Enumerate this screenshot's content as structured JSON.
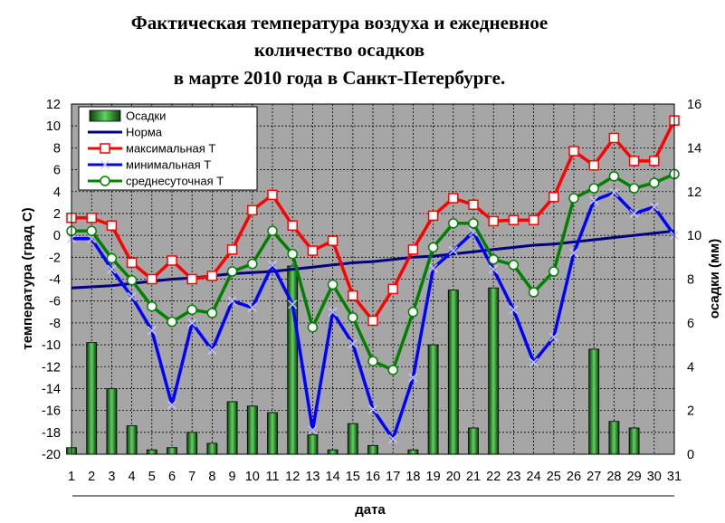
{
  "chart_data": {
    "type": "bar+line",
    "title_lines": [
      "Фактическая температура воздуха и ежедневное",
      "количество осадков",
      "в марте 2010 года в Санкт-Петербурге."
    ],
    "xlabel": "дата",
    "ylabel_left": "температура (град С)",
    "ylabel_right": "осадки (мм)",
    "ylim_left": [
      -20,
      12
    ],
    "ylim_right": [
      0,
      16
    ],
    "yticks_left": [
      12,
      10,
      8,
      6,
      4,
      2,
      0,
      -2,
      -4,
      -6,
      -8,
      -10,
      -12,
      -14,
      -16,
      -18,
      -20
    ],
    "yticks_right": [
      16,
      14,
      12,
      10,
      8,
      6,
      4,
      2,
      0
    ],
    "categories": [
      "1",
      "2",
      "3",
      "4",
      "5",
      "6",
      "7",
      "8",
      "9",
      "10",
      "11",
      "12",
      "13",
      "14",
      "15",
      "16",
      "17",
      "18",
      "19",
      "20",
      "21",
      "22",
      "23",
      "24",
      "25",
      "26",
      "27",
      "28",
      "29",
      "30",
      "31"
    ],
    "plot_background": "#a6a6a6",
    "grid": "dashed",
    "legend_position": "top-left",
    "series": [
      {
        "name": "Осадки",
        "kind": "bar",
        "axis": "right",
        "color": "#1e7a1e",
        "values": [
          0.3,
          5.1,
          3.0,
          1.3,
          0.2,
          0.3,
          1.0,
          0.5,
          2.4,
          2.2,
          1.9,
          8.6,
          0.9,
          0.2,
          1.4,
          0.4,
          0.0,
          0.2,
          5.0,
          7.5,
          1.2,
          7.6,
          0.0,
          0.0,
          0.0,
          0.0,
          4.8,
          1.5,
          1.2,
          0.0,
          0.0
        ]
      },
      {
        "name": "Норма",
        "kind": "line",
        "axis": "left",
        "color": "#000080",
        "marker": "none",
        "values": [
          -4.8,
          -4.7,
          -4.6,
          -4.4,
          -4.2,
          -4.0,
          -3.9,
          -3.7,
          -3.5,
          -3.4,
          -3.3,
          -3.1,
          -2.9,
          -2.7,
          -2.5,
          -2.4,
          -2.2,
          -2.0,
          -1.9,
          -1.7,
          -1.5,
          -1.3,
          -1.1,
          -0.9,
          -0.8,
          -0.6,
          -0.4,
          -0.2,
          0.0,
          0.2,
          0.4
        ]
      },
      {
        "name": "максимальная Т",
        "kind": "line",
        "axis": "left",
        "color": "#ff0000",
        "marker": "square",
        "values": [
          1.6,
          1.6,
          0.9,
          -2.5,
          -4.0,
          -2.3,
          -4.0,
          -3.7,
          -1.3,
          2.3,
          3.7,
          0.9,
          -1.4,
          -0.5,
          -5.5,
          -7.8,
          -4.9,
          -1.3,
          1.8,
          3.4,
          2.8,
          1.3,
          1.4,
          1.4,
          3.5,
          7.7,
          6.4,
          8.9,
          6.8,
          6.8,
          10.5
        ]
      },
      {
        "name": "минимальная Т",
        "kind": "line",
        "axis": "left",
        "color": "#0000ff",
        "marker": "x",
        "values": [
          -0.3,
          -0.3,
          -3.1,
          -5.6,
          -8.7,
          -15.5,
          -8.0,
          -10.5,
          -6.0,
          -6.6,
          -2.7,
          -6.3,
          -17.8,
          -7.0,
          -9.9,
          -15.9,
          -18.6,
          -13.0,
          -3.0,
          -1.4,
          0.3,
          -3.1,
          -6.8,
          -11.6,
          -9.3,
          -1.6,
          3.2,
          3.9,
          2.0,
          2.6,
          0.0
        ]
      },
      {
        "name": "среднесуточная Т",
        "kind": "line",
        "axis": "left",
        "color": "#008000",
        "marker": "circle",
        "values": [
          0.4,
          0.4,
          -2.1,
          -4.1,
          -6.5,
          -7.9,
          -6.8,
          -7.1,
          -3.3,
          -2.6,
          0.4,
          -1.7,
          -8.4,
          -4.5,
          -7.5,
          -11.5,
          -12.3,
          -7.0,
          -1.1,
          1.1,
          1.1,
          -2.2,
          -2.7,
          -5.2,
          -3.3,
          3.4,
          4.3,
          5.4,
          4.3,
          4.8,
          5.6
        ]
      }
    ]
  }
}
